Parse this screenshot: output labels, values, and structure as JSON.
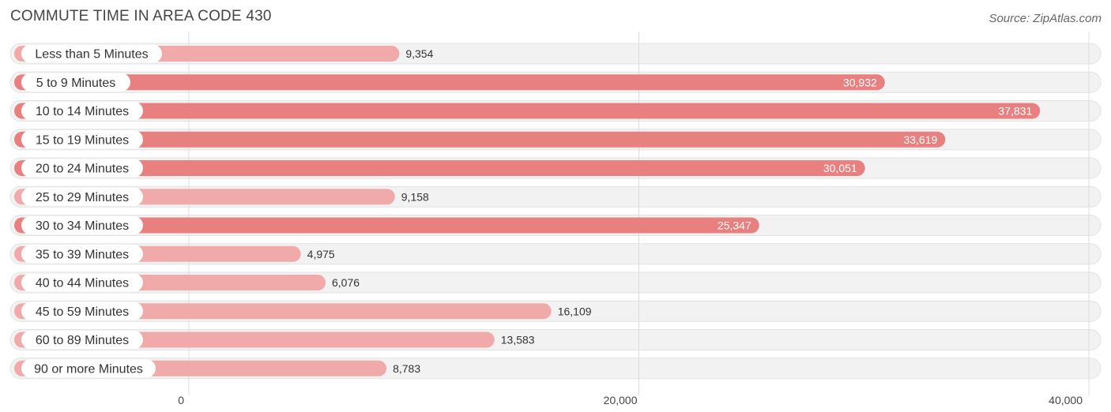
{
  "header": {
    "title": "COMMUTE TIME IN AREA CODE 430",
    "source": "Source: ZipAtlas.com"
  },
  "colors": {
    "bar_strong": "#e88080",
    "bar_light": "#f0aaaa",
    "row_background": "#f2f2f2"
  },
  "chart_data": {
    "type": "bar",
    "orientation": "horizontal",
    "title": "COMMUTE TIME IN AREA CODE 430",
    "categories": [
      "Less than 5 Minutes",
      "5 to 9 Minutes",
      "10 to 14 Minutes",
      "15 to 19 Minutes",
      "20 to 24 Minutes",
      "25 to 29 Minutes",
      "30 to 34 Minutes",
      "35 to 39 Minutes",
      "40 to 44 Minutes",
      "45 to 59 Minutes",
      "60 to 89 Minutes",
      "90 or more Minutes"
    ],
    "values": [
      9354,
      30932,
      37831,
      33619,
      30051,
      9158,
      25347,
      4975,
      6076,
      16109,
      13583,
      8783
    ],
    "value_labels": [
      "9,354",
      "30,932",
      "37,831",
      "33,619",
      "30,051",
      "9,158",
      "25,347",
      "4,975",
      "6,076",
      "16,109",
      "13,583",
      "8,783"
    ],
    "xlim": [
      0,
      40000
    ],
    "ticks": [
      0,
      20000,
      40000
    ],
    "tick_labels": [
      "0",
      "20,000",
      "40,000"
    ],
    "xlabel": "",
    "ylabel": "",
    "grid": true
  }
}
